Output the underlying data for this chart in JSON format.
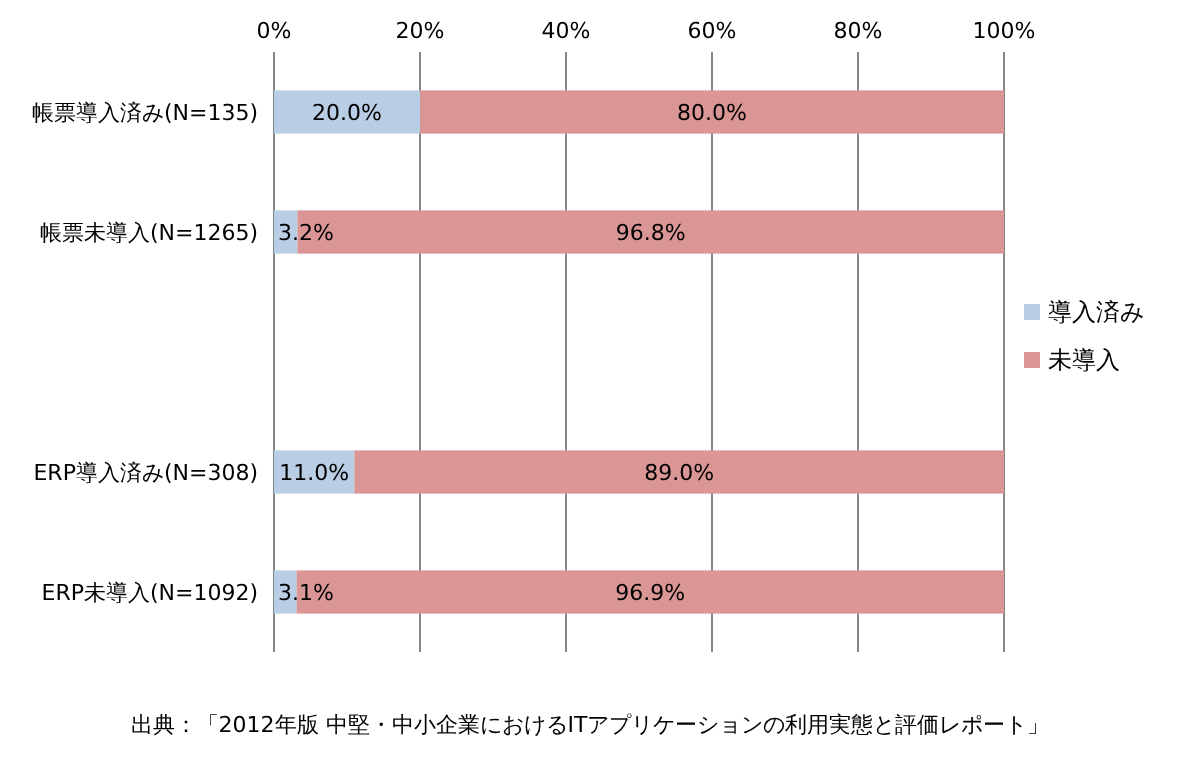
{
  "chart_data": {
    "type": "bar",
    "orientation": "horizontal",
    "stacked": true,
    "categories": [
      "帳票導入済み(N=135)",
      "帳票未導入(N=1265)",
      null,
      "ERP導入済み(N=308)",
      "ERP未導入(N=1092)"
    ],
    "series": [
      {
        "name": "導入済み",
        "color": "#b9cde5",
        "values": [
          20.0,
          3.2,
          null,
          11.0,
          3.1
        ],
        "value_labels": [
          "20.0%",
          "3.2%",
          null,
          "11.0%",
          "3.1%"
        ]
      },
      {
        "name": "未導入",
        "color": "#d99694",
        "values": [
          80.0,
          96.8,
          null,
          89.0,
          96.9
        ],
        "value_labels": [
          "80.0%",
          "96.8%",
          null,
          "89.0%",
          "96.9%"
        ]
      }
    ],
    "xlim": [
      0,
      100
    ],
    "xticks": [
      {
        "value": 0,
        "label": "0%"
      },
      {
        "value": 20,
        "label": "20%"
      },
      {
        "value": 40,
        "label": "40%"
      },
      {
        "value": 60,
        "label": "60%"
      },
      {
        "value": 80,
        "label": "80%"
      },
      {
        "value": 100,
        "label": "100%"
      }
    ],
    "grid": "x",
    "legend": "right",
    "annotations": [
      "出典：「2012年版 中堅・中小企業におけるITアプリケーションの利用実態と評価レポート」"
    ]
  }
}
